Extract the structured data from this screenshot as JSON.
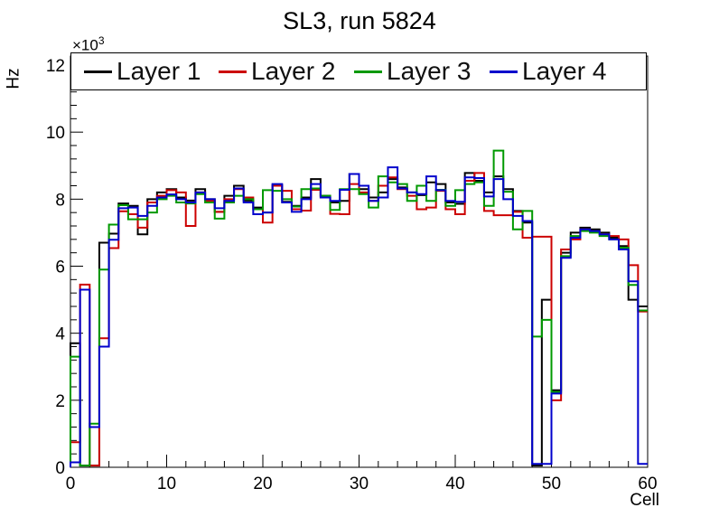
{
  "title": "SL3, run 5824",
  "power_label": {
    "base": "×10",
    "exponent": "3"
  },
  "axes": {
    "x": {
      "label": "Cell",
      "min": 0,
      "max": 60,
      "major_ticks": [
        0,
        10,
        20,
        30,
        40,
        50,
        60
      ],
      "minor_step": 2
    },
    "y": {
      "label": "Hz",
      "min": 0,
      "max": 12.27,
      "major_ticks": [
        0,
        2,
        4,
        6,
        8,
        10,
        12
      ],
      "minor_step": 0.4,
      "multiplier": "×10³"
    }
  },
  "legend": {
    "entries": [
      {
        "label": "Layer 1",
        "color": "#000000"
      },
      {
        "label": "Layer 2",
        "color": "#cc0000"
      },
      {
        "label": "Layer 3",
        "color": "#009900"
      },
      {
        "label": "Layer 4",
        "color": "#0000cc"
      }
    ]
  },
  "chart_data": {
    "type": "step-histogram",
    "title": "SL3, run 5824",
    "xlabel": "Cell",
    "ylabel": "Hz",
    "units": "10^3 Hz",
    "bin_start": 0,
    "bin_width": 1,
    "n_bins": 60,
    "xlim": [
      0,
      60
    ],
    "ylim": [
      0,
      12.27
    ],
    "grid": false,
    "legend_position": "top-strip",
    "series": [
      {
        "name": "Layer 1",
        "color": "#000000",
        "values": [
          3.7,
          0.05,
          0.05,
          6.7,
          6.97,
          7.87,
          7.8,
          6.95,
          8.0,
          8.2,
          8.3,
          8.05,
          7.96,
          8.3,
          8.0,
          7.62,
          8.1,
          8.4,
          7.96,
          7.75,
          7.6,
          8.42,
          7.92,
          7.8,
          8.05,
          8.6,
          8.1,
          7.9,
          7.95,
          8.75,
          8.3,
          8.05,
          8.2,
          8.6,
          8.35,
          8.2,
          8.12,
          8.5,
          8.45,
          7.9,
          7.86,
          8.78,
          8.55,
          8.2,
          8.68,
          8.3,
          7.65,
          7.3,
          0.05,
          5.0,
          2.3,
          6.4,
          7.0,
          7.15,
          7.1,
          7.0,
          6.85,
          6.6,
          5.0,
          4.8
        ]
      },
      {
        "name": "Layer 2",
        "color": "#cc0000",
        "values": [
          0.75,
          5.45,
          0.05,
          3.85,
          6.54,
          7.64,
          7.55,
          7.15,
          7.9,
          8.1,
          8.27,
          8.2,
          7.2,
          8.2,
          7.95,
          7.62,
          8.0,
          8.3,
          8.05,
          7.7,
          7.3,
          8.4,
          8.25,
          7.7,
          7.66,
          8.28,
          8.05,
          7.56,
          7.55,
          8.45,
          8.2,
          7.95,
          8.4,
          8.65,
          8.3,
          8.1,
          7.7,
          7.75,
          8.25,
          7.7,
          7.55,
          8.55,
          8.78,
          7.65,
          7.52,
          7.52,
          7.62,
          6.85,
          6.88,
          6.88,
          2.0,
          6.5,
          6.8,
          7.1,
          7.05,
          6.95,
          6.9,
          6.8,
          6.03,
          4.65
        ]
      },
      {
        "name": "Layer 3",
        "color": "#009900",
        "values": [
          3.3,
          0.05,
          1.3,
          5.9,
          7.24,
          7.82,
          7.4,
          7.4,
          7.6,
          8.0,
          8.1,
          7.9,
          7.87,
          8.15,
          7.9,
          7.42,
          7.9,
          8.1,
          8.0,
          7.7,
          8.27,
          8.25,
          8.0,
          7.78,
          8.3,
          8.32,
          8.1,
          7.68,
          8.3,
          8.3,
          8.15,
          7.75,
          8.68,
          8.5,
          8.45,
          7.95,
          8.4,
          7.95,
          8.28,
          7.8,
          8.27,
          8.45,
          8.5,
          7.8,
          9.45,
          8.22,
          7.1,
          7.65,
          3.9,
          4.4,
          2.25,
          6.3,
          6.9,
          7.05,
          7.0,
          6.9,
          6.8,
          6.55,
          5.44,
          4.68
        ]
      },
      {
        "name": "Layer 4",
        "color": "#0000cc",
        "values": [
          0.15,
          5.3,
          1.2,
          3.6,
          6.79,
          7.73,
          7.75,
          7.5,
          7.8,
          8.05,
          8.14,
          8.0,
          7.9,
          8.2,
          8.0,
          7.73,
          7.95,
          8.32,
          7.9,
          7.55,
          7.6,
          8.45,
          7.9,
          7.62,
          8.0,
          8.45,
          8.05,
          7.95,
          8.28,
          8.75,
          8.4,
          7.95,
          8.05,
          8.95,
          8.32,
          8.2,
          8.15,
          8.68,
          8.27,
          7.95,
          7.92,
          8.65,
          8.63,
          8.08,
          8.6,
          8.0,
          7.5,
          7.35,
          0.1,
          0.1,
          2.2,
          6.25,
          6.85,
          7.1,
          7.05,
          6.95,
          6.8,
          6.5,
          5.55,
          0.1
        ]
      }
    ]
  }
}
